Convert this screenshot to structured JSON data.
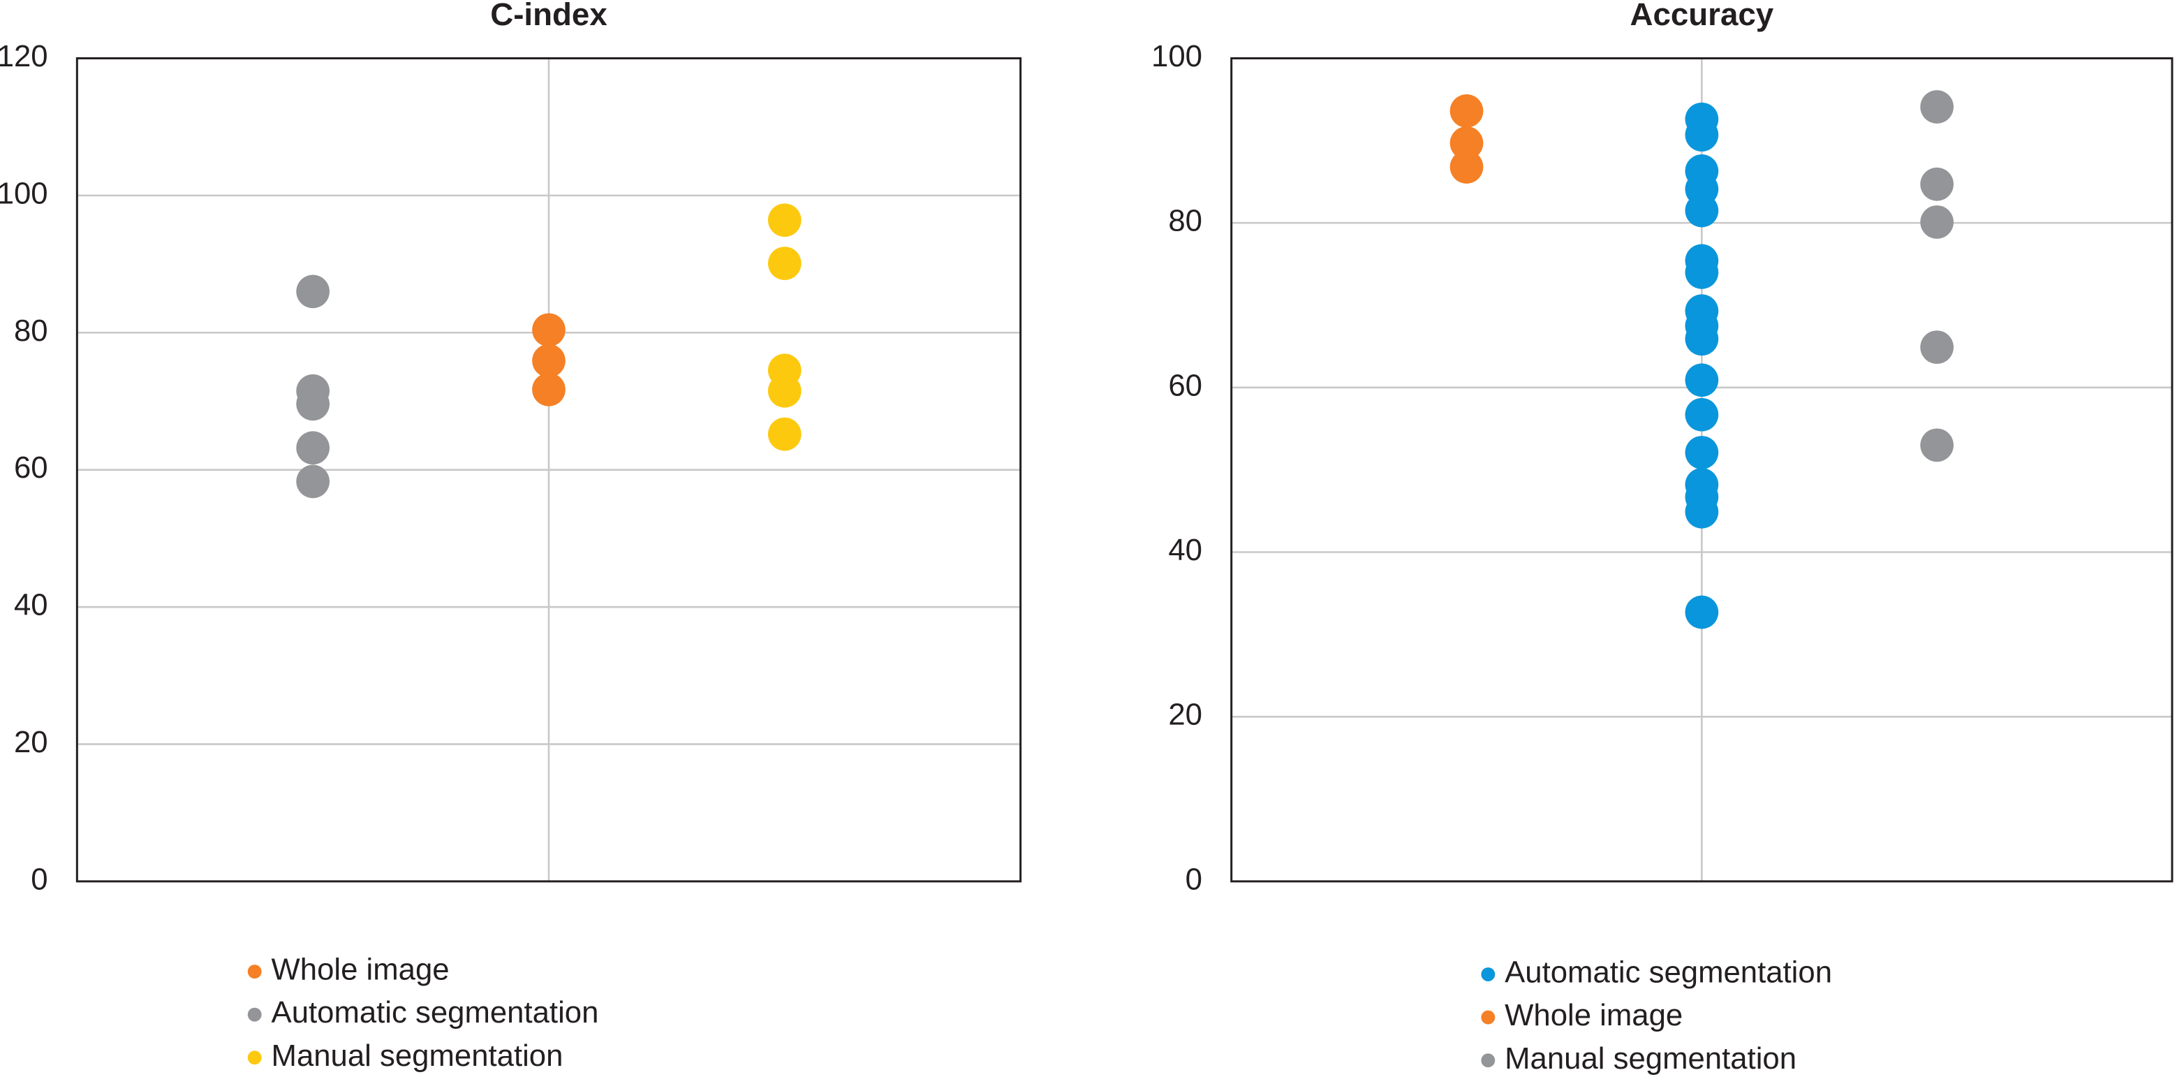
{
  "chart_data": [
    {
      "type": "scatter",
      "title": "C-index",
      "xlim": [
        0,
        4
      ],
      "ylim": [
        0,
        120
      ],
      "yticks": [
        0,
        20,
        40,
        60,
        80,
        100,
        120
      ],
      "grid": true,
      "series": [
        {
          "name": "Whole image",
          "color": "#f58025",
          "x": [
            2,
            2,
            2
          ],
          "values": [
            80.4,
            75.9,
            71.7
          ]
        },
        {
          "name": "Automatic segmentation",
          "color": "#939598",
          "x": [
            1,
            1,
            1,
            1,
            1
          ],
          "values": [
            86,
            71.5,
            69.6,
            63.2,
            58.3
          ]
        },
        {
          "name": "Manual segmentation",
          "color": "#fdc90f",
          "x": [
            3,
            3,
            3,
            3,
            3
          ],
          "values": [
            96.4,
            90.1,
            74.5,
            71.5,
            65.2
          ]
        }
      ]
    },
    {
      "type": "scatter",
      "title": "Accuracy",
      "xlim": [
        0,
        4
      ],
      "ylim": [
        0,
        100
      ],
      "yticks": [
        0,
        20,
        40,
        60,
        80,
        100
      ],
      "grid": true,
      "series": [
        {
          "name": "Automatic segmentation",
          "color": "#0a96dc",
          "x": [
            2,
            2,
            2,
            2,
            2,
            2,
            2,
            2,
            2,
            2,
            2,
            2,
            2,
            2,
            2,
            2,
            2
          ],
          "values": [
            92.6,
            90.7,
            86.3,
            84.1,
            81.5,
            75.4,
            74.0,
            69.3,
            67.5,
            65.9,
            60.9,
            56.7,
            52.1,
            48.2,
            46.7,
            44.9,
            32.7
          ]
        },
        {
          "name": "Whole image",
          "color": "#f58025",
          "x": [
            1,
            1,
            1
          ],
          "values": [
            93.6,
            89.7,
            86.8
          ]
        },
        {
          "name": "Manual segmentation",
          "color": "#939598",
          "x": [
            3,
            3,
            3,
            3,
            3
          ],
          "values": [
            94.1,
            84.7,
            80.1,
            64.9,
            53.0
          ]
        }
      ]
    }
  ]
}
